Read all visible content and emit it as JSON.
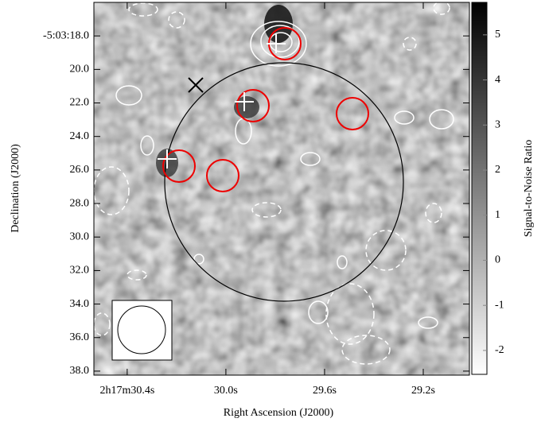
{
  "chart_data": {
    "type": "image",
    "x_label": "Right Ascension (J2000)",
    "y_label": "Declination (J2000)",
    "xlim": [
      30.535,
      29.013
    ],
    "xticks": [
      {
        "value": 30.4,
        "label": "2h17m30.4s"
      },
      {
        "value": 30.0,
        "label": "30.0s"
      },
      {
        "value": 29.6,
        "label": "29.6s"
      },
      {
        "value": 29.2,
        "label": "29.2s"
      }
    ],
    "ylim": [
      38.24,
      16.0
    ],
    "yticks": [
      {
        "value": 18.0,
        "label": "-5:03:18.0"
      },
      {
        "value": 20.0,
        "label": "20.0"
      },
      {
        "value": 22.0,
        "label": "22.0"
      },
      {
        "value": 24.0,
        "label": "24.0"
      },
      {
        "value": 26.0,
        "label": "26.0"
      },
      {
        "value": 28.0,
        "label": "28.0"
      },
      {
        "value": 30.0,
        "label": "30.0"
      },
      {
        "value": 32.0,
        "label": "32.0"
      },
      {
        "value": 34.0,
        "label": "34.0"
      },
      {
        "value": 36.0,
        "label": "36.0"
      },
      {
        "value": 38.0,
        "label": "38.0"
      }
    ],
    "colorbar_label": "Signal-to-Noise Ratio",
    "clim": [
      -2.53,
      5.72
    ],
    "cticks": [
      -2,
      -1,
      0,
      1,
      2,
      3,
      4,
      5
    ]
  }
}
